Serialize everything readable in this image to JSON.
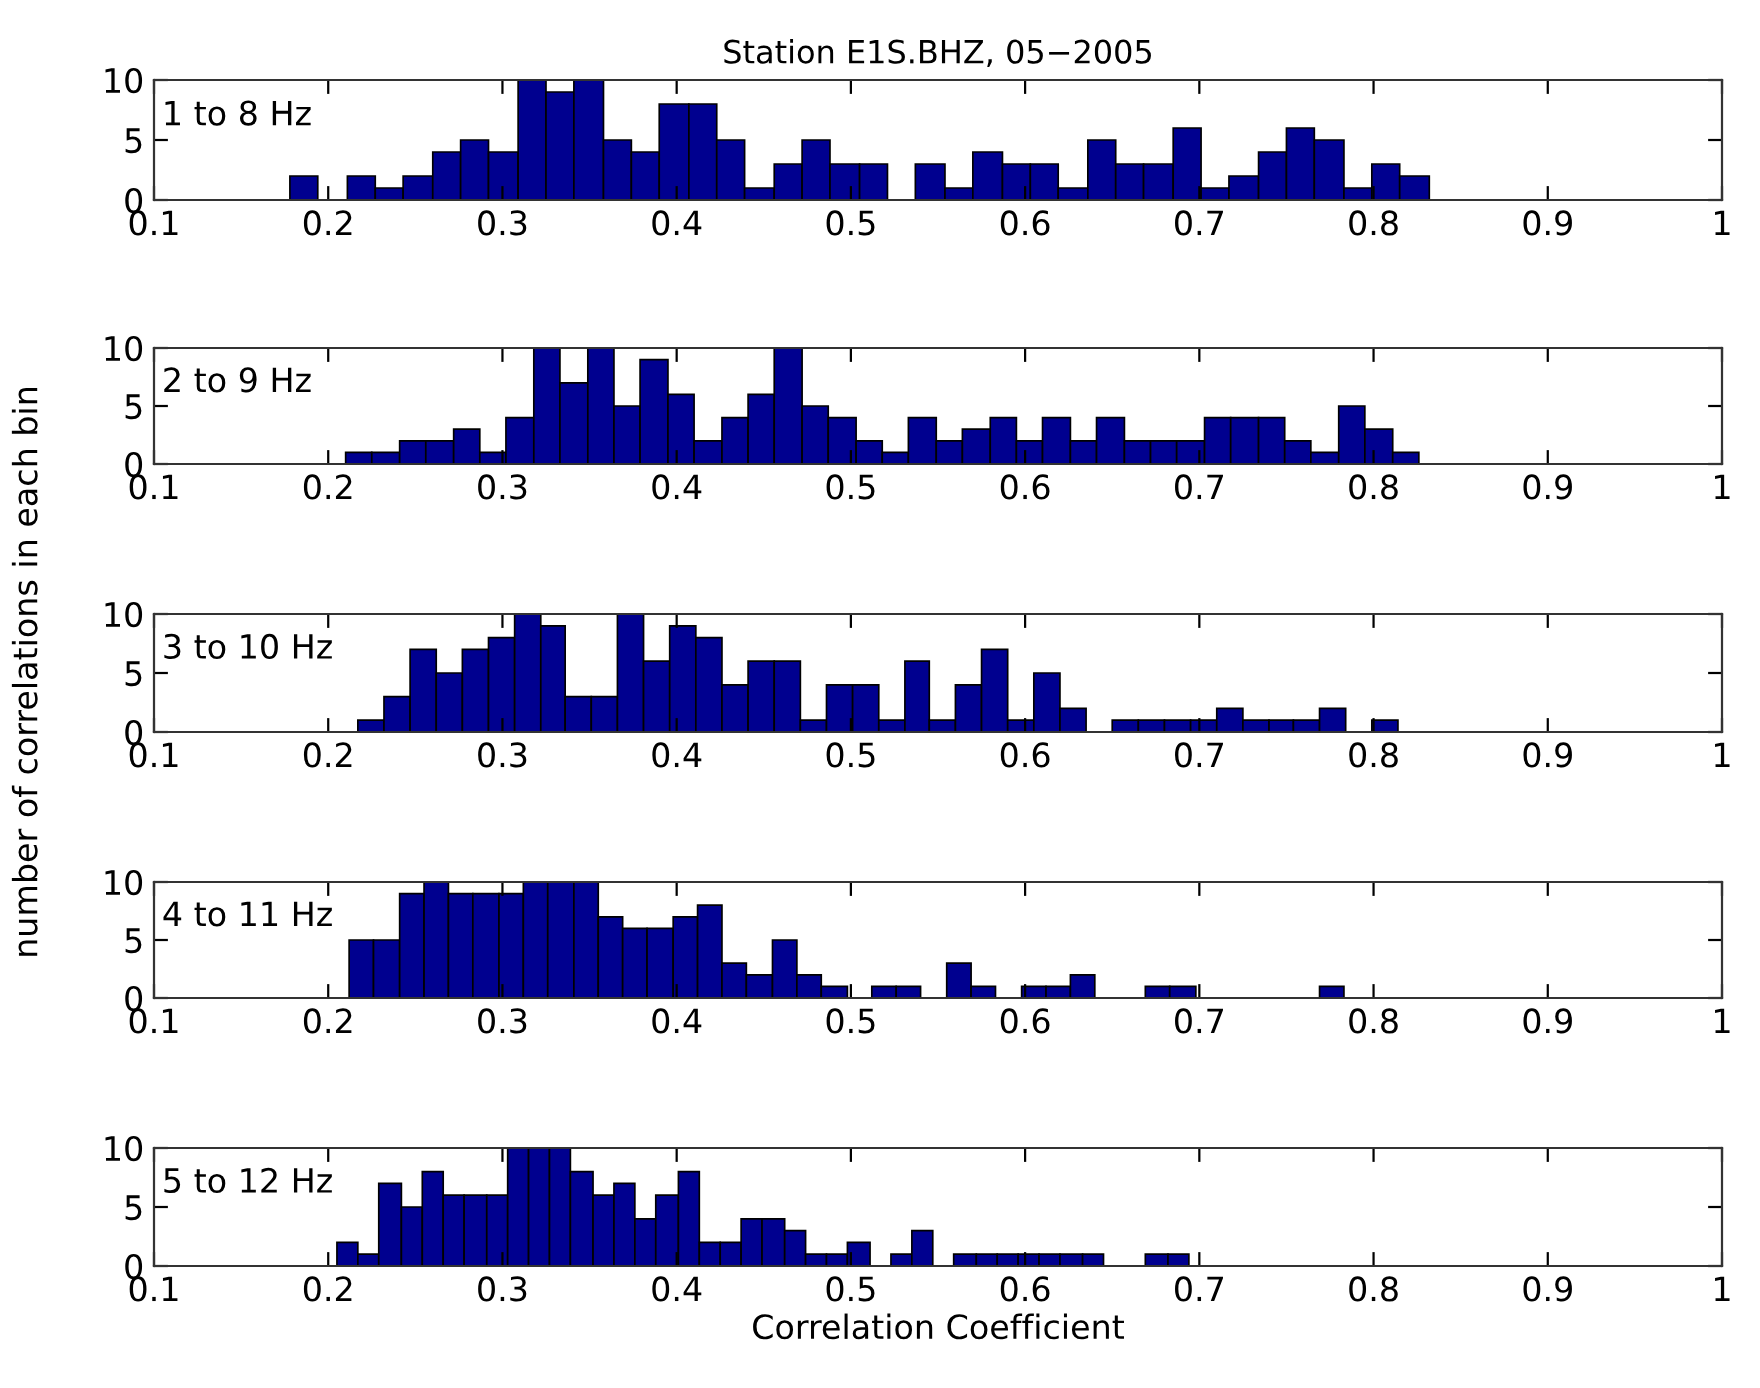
{
  "chart_data": [
    {
      "type": "histogram",
      "title": "Station E1S.BHZ, 05−2005",
      "annotations": [
        "1 to 8 Hz"
      ],
      "color": "#00008f",
      "bins": [
        0.178,
        0.194,
        0.211,
        0.227,
        0.243,
        0.26,
        0.276,
        0.292,
        0.309,
        0.325,
        0.341,
        0.358,
        0.374,
        0.39,
        0.407,
        0.423,
        0.439,
        0.456,
        0.472,
        0.488,
        0.505,
        0.521,
        0.537,
        0.554,
        0.57,
        0.587,
        0.603,
        0.619,
        0.636,
        0.652,
        0.668,
        0.685,
        0.701,
        0.717,
        0.734,
        0.75,
        0.766,
        0.783,
        0.799,
        0.815,
        0.832
      ],
      "values": [
        2,
        0,
        2,
        1,
        2,
        4,
        5,
        4,
        10,
        9,
        10,
        5,
        4,
        8,
        8,
        5,
        1,
        3,
        5,
        3,
        3,
        0,
        3,
        1,
        4,
        3,
        3,
        1,
        5,
        3,
        3,
        6,
        1,
        2,
        4,
        6,
        5,
        1,
        3,
        2
      ],
      "xlim": [
        0.1,
        1
      ],
      "xticks": [
        0.1,
        0.2,
        0.3,
        0.4,
        0.5,
        0.6,
        0.7,
        0.8,
        0.9,
        1
      ],
      "ylim": [
        0,
        10
      ],
      "yticks": [
        0,
        5,
        10
      ],
      "grid": false
    },
    {
      "type": "histogram",
      "annotations": [
        "2 to 9 Hz"
      ],
      "color": "#00008f",
      "bins": [
        0.21,
        0.225,
        0.241,
        0.256,
        0.272,
        0.287,
        0.302,
        0.318,
        0.333,
        0.349,
        0.364,
        0.379,
        0.395,
        0.41,
        0.426,
        0.441,
        0.456,
        0.472,
        0.487,
        0.503,
        0.518,
        0.533,
        0.549,
        0.564,
        0.58,
        0.595,
        0.61,
        0.626,
        0.641,
        0.657,
        0.672,
        0.687,
        0.703,
        0.718,
        0.734,
        0.749,
        0.764,
        0.78,
        0.795,
        0.811,
        0.826
      ],
      "values": [
        1,
        1,
        2,
        2,
        3,
        1,
        4,
        10,
        7,
        10,
        5,
        9,
        6,
        2,
        4,
        6,
        10,
        5,
        4,
        2,
        1,
        4,
        2,
        3,
        4,
        2,
        4,
        2,
        4,
        2,
        2,
        2,
        4,
        4,
        4,
        2,
        1,
        5,
        3,
        1
      ],
      "xlim": [
        0.1,
        1
      ],
      "xticks": [
        0.1,
        0.2,
        0.3,
        0.4,
        0.5,
        0.6,
        0.7,
        0.8,
        0.9,
        1
      ],
      "ylim": [
        0,
        10
      ],
      "yticks": [
        0,
        5,
        10
      ],
      "grid": false
    },
    {
      "type": "histogram",
      "ylabel": "number of correlations in each bin",
      "annotations": [
        "3 to 10 Hz"
      ],
      "color": "#00008f",
      "bins": [
        0.217,
        0.232,
        0.247,
        0.262,
        0.277,
        0.292,
        0.307,
        0.322,
        0.336,
        0.351,
        0.366,
        0.381,
        0.396,
        0.411,
        0.426,
        0.441,
        0.456,
        0.471,
        0.486,
        0.501,
        0.516,
        0.531,
        0.545,
        0.56,
        0.575,
        0.59,
        0.605,
        0.62,
        0.635,
        0.65,
        0.665,
        0.68,
        0.695,
        0.71,
        0.725,
        0.74,
        0.754,
        0.769,
        0.784,
        0.799,
        0.814
      ],
      "values": [
        1,
        3,
        7,
        5,
        7,
        8,
        10,
        9,
        3,
        3,
        10,
        6,
        9,
        8,
        4,
        6,
        6,
        1,
        4,
        4,
        1,
        6,
        1,
        4,
        7,
        1,
        5,
        2,
        0,
        1,
        1,
        1,
        1,
        2,
        1,
        1,
        1,
        2,
        0,
        1
      ],
      "xlim": [
        0.1,
        1
      ],
      "xticks": [
        0.1,
        0.2,
        0.3,
        0.4,
        0.5,
        0.6,
        0.7,
        0.8,
        0.9,
        1
      ],
      "ylim": [
        0,
        10
      ],
      "yticks": [
        0,
        5,
        10
      ],
      "grid": false
    },
    {
      "type": "histogram",
      "annotations": [
        "4 to 11 Hz"
      ],
      "color": "#00008f",
      "bins": [
        0.212,
        0.226,
        0.241,
        0.255,
        0.269,
        0.283,
        0.298,
        0.312,
        0.326,
        0.341,
        0.355,
        0.369,
        0.383,
        0.398,
        0.412,
        0.426,
        0.44,
        0.455,
        0.469,
        0.483,
        0.498,
        0.512,
        0.526,
        0.54,
        0.555,
        0.569,
        0.583,
        0.598,
        0.612,
        0.626,
        0.64,
        0.669,
        0.683,
        0.698,
        0.769,
        0.783
      ],
      "values": [
        5,
        5,
        9,
        10,
        9,
        9,
        9,
        10,
        10,
        10,
        7,
        6,
        6,
        7,
        8,
        3,
        2,
        5,
        2,
        1,
        0,
        1,
        1,
        0,
        3,
        1,
        0,
        1,
        1,
        2,
        0,
        1,
        1,
        0,
        1
      ],
      "xlim": [
        0.1,
        1
      ],
      "xticks": [
        0.1,
        0.2,
        0.3,
        0.4,
        0.5,
        0.6,
        0.7,
        0.8,
        0.9,
        1
      ],
      "ylim": [
        0,
        10
      ],
      "yticks": [
        0,
        5,
        10
      ],
      "grid": false
    },
    {
      "type": "histogram",
      "xlabel": "Correlation Coefficient",
      "annotations": [
        "5 to 12 Hz"
      ],
      "color": "#00008f",
      "bins": [
        0.205,
        0.217,
        0.229,
        0.242,
        0.254,
        0.266,
        0.278,
        0.291,
        0.303,
        0.315,
        0.327,
        0.339,
        0.352,
        0.364,
        0.376,
        0.388,
        0.401,
        0.413,
        0.425,
        0.437,
        0.449,
        0.462,
        0.474,
        0.486,
        0.498,
        0.511,
        0.523,
        0.535,
        0.547,
        0.559,
        0.572,
        0.584,
        0.596,
        0.608,
        0.62,
        0.633,
        0.645,
        0.669,
        0.682,
        0.694
      ],
      "values": [
        2,
        1,
        7,
        5,
        8,
        6,
        6,
        6,
        10,
        10,
        10,
        8,
        6,
        7,
        4,
        6,
        8,
        2,
        2,
        4,
        4,
        3,
        1,
        1,
        2,
        0,
        1,
        3,
        0,
        1,
        1,
        1,
        1,
        1,
        1,
        1,
        0,
        1,
        1
      ],
      "xlim": [
        0.1,
        1
      ],
      "xticks": [
        0.1,
        0.2,
        0.3,
        0.4,
        0.5,
        0.6,
        0.7,
        0.8,
        0.9,
        1
      ],
      "ylim": [
        0,
        10
      ],
      "yticks": [
        0,
        5,
        10
      ],
      "grid": false
    }
  ]
}
